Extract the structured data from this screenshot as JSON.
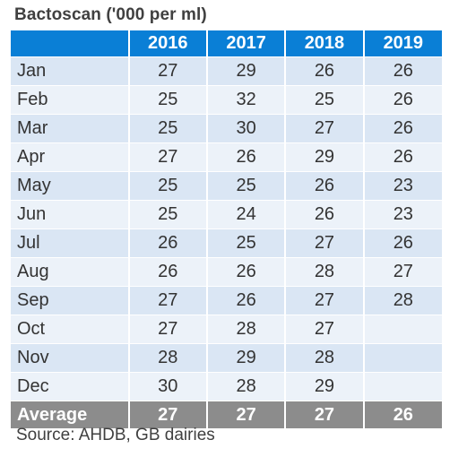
{
  "title": "Bactoscan ('000 per ml)",
  "table": {
    "header": [
      "",
      "2016",
      "2017",
      "2018",
      "2019"
    ],
    "rows": [
      [
        "Jan",
        "27",
        "29",
        "26",
        "26"
      ],
      [
        "Feb",
        "25",
        "32",
        "25",
        "26"
      ],
      [
        "Mar",
        "25",
        "30",
        "27",
        "26"
      ],
      [
        "Apr",
        "27",
        "26",
        "29",
        "26"
      ],
      [
        "May",
        "25",
        "25",
        "26",
        "23"
      ],
      [
        "Jun",
        "25",
        "24",
        "26",
        "23"
      ],
      [
        "Jul",
        "26",
        "25",
        "27",
        "26"
      ],
      [
        "Aug",
        "26",
        "26",
        "28",
        "27"
      ],
      [
        "Sep",
        "27",
        "26",
        "27",
        "28"
      ],
      [
        "Oct",
        "27",
        "28",
        "27",
        ""
      ],
      [
        "Nov",
        "28",
        "29",
        "28",
        ""
      ],
      [
        "Dec",
        "30",
        "28",
        "29",
        ""
      ]
    ],
    "average": [
      "Average",
      "27",
      "27",
      "27",
      "26"
    ]
  },
  "colors": {
    "header_bg": "#0a7fd6",
    "row_dark": "#dae6f4",
    "row_light": "#ecf2f9",
    "average_bg": "#8c8c8c"
  },
  "source": "Source: AHDB, GB dairies"
}
